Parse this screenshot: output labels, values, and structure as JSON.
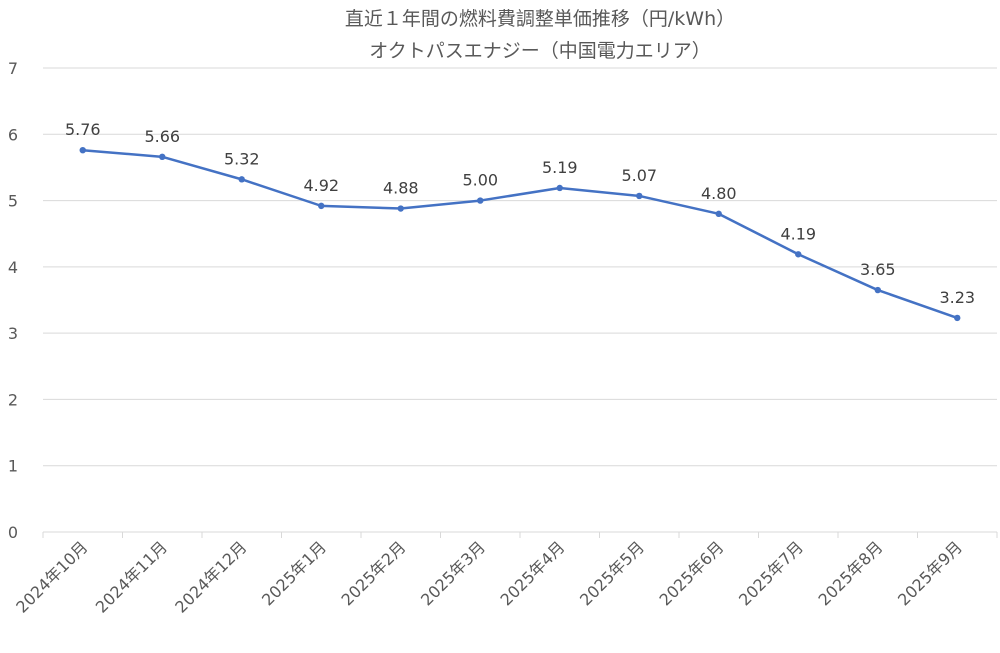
{
  "chart_data": {
    "type": "line",
    "title": "直近１年間の燃料費調整単価推移（円/kWh）",
    "subtitle": "オクトパスエナジー（中国電力エリア）",
    "xlabel": "",
    "ylabel": "",
    "ylim": [
      0,
      7
    ],
    "yticks": [
      "0",
      "1",
      "2",
      "3",
      "4",
      "5",
      "6",
      "7"
    ],
    "grid": true,
    "legend": "none",
    "categories": [
      "2024年10月",
      "2024年11月",
      "2024年12月",
      "2025年1月",
      "2025年2月",
      "2025年3月",
      "2025年4月",
      "2025年5月",
      "2025年6月",
      "2025年7月",
      "2025年8月",
      "2025年9月"
    ],
    "series": [
      {
        "values": [
          5.76,
          5.66,
          5.32,
          4.92,
          4.88,
          5.0,
          5.19,
          5.07,
          4.8,
          4.19,
          3.65,
          3.23
        ],
        "labels": [
          "5.76",
          "5.66",
          "5.32",
          "4.92",
          "4.88",
          "5.00",
          "5.19",
          "5.07",
          "4.80",
          "4.19",
          "3.65",
          "3.23"
        ],
        "color": "#4472c4"
      }
    ]
  }
}
